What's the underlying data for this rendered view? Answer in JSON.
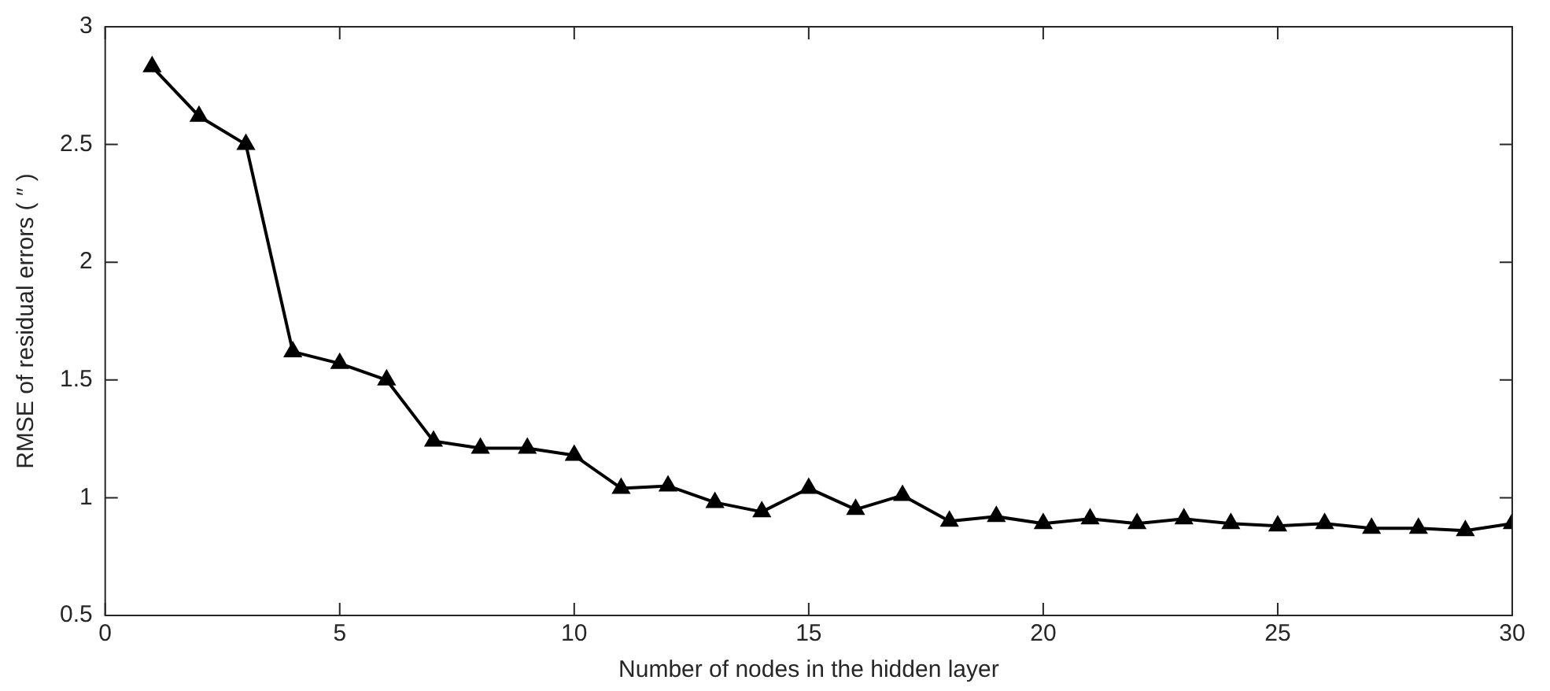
{
  "chart_data": {
    "type": "line",
    "xlabel": "Number of nodes in the hidden layer",
    "ylabel": "RMSE of residual errors ( ″ )",
    "x": [
      1,
      2,
      3,
      4,
      5,
      6,
      7,
      8,
      9,
      10,
      11,
      12,
      13,
      14,
      15,
      16,
      17,
      18,
      19,
      20,
      21,
      22,
      23,
      24,
      25,
      26,
      27,
      28,
      29,
      30
    ],
    "series": [
      {
        "color": "#000000",
        "values": [
          2.83,
          2.62,
          2.5,
          1.62,
          1.57,
          1.5,
          1.24,
          1.21,
          1.21,
          1.18,
          1.04,
          1.05,
          0.98,
          0.94,
          1.04,
          0.95,
          1.01,
          0.9,
          0.92,
          0.89,
          0.91,
          0.89,
          0.91,
          0.89,
          0.88,
          0.89,
          0.87,
          0.87,
          0.86,
          0.89
        ]
      }
    ],
    "xlim": [
      0,
      30
    ],
    "xticks": [
      0,
      5,
      10,
      15,
      20,
      25,
      30
    ],
    "ylim": [
      0.5,
      3
    ],
    "yticks": [
      0.5,
      1,
      1.5,
      2,
      2.5,
      3
    ],
    "grid": false,
    "legend": false,
    "marker": "triangle",
    "line_style": "solid"
  }
}
